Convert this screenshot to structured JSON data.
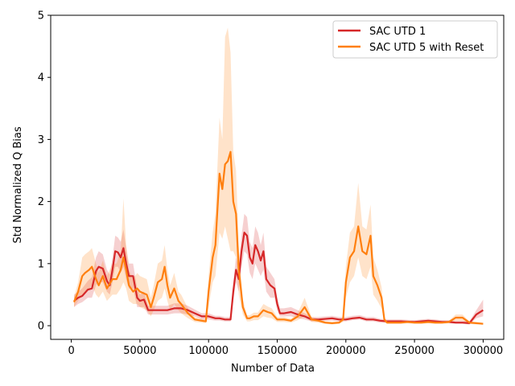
{
  "chart_data": {
    "type": "line",
    "title": "",
    "xlabel": "Number of Data",
    "ylabel": "Std Normalized Q Bias",
    "xlim": [
      -15000,
      315000
    ],
    "ylim": [
      -0.22,
      5.0
    ],
    "xticks": [
      0,
      50000,
      100000,
      150000,
      200000,
      250000,
      300000
    ],
    "xtick_labels": [
      "0",
      "50000",
      "100000",
      "150000",
      "200000",
      "250000",
      "300000"
    ],
    "yticks": [
      0,
      1,
      2,
      3,
      4,
      5
    ],
    "ytick_labels": [
      "0",
      "1",
      "2",
      "3",
      "4",
      "5"
    ],
    "grid": false,
    "legend_position": "top-right",
    "series": [
      {
        "name": "SAC UTD 1",
        "color": "#d62728",
        "x": [
          2000,
          5000,
          8000,
          12000,
          15000,
          18000,
          20000,
          23000,
          26000,
          28000,
          30000,
          32000,
          34000,
          36000,
          38000,
          40000,
          42000,
          45000,
          48000,
          50000,
          53000,
          56000,
          60000,
          65000,
          70000,
          75000,
          80000,
          85000,
          90000,
          95000,
          100000,
          105000,
          108000,
          112000,
          116000,
          118000,
          120000,
          122000,
          124000,
          126000,
          128000,
          130000,
          132000,
          134000,
          136000,
          138000,
          140000,
          142000,
          145000,
          148000,
          150000,
          152000,
          155000,
          160000,
          165000,
          170000,
          175000,
          180000,
          190000,
          195000,
          200000,
          205000,
          210000,
          215000,
          220000,
          225000,
          230000,
          240000,
          250000,
          255000,
          260000,
          265000,
          270000,
          275000,
          280000,
          285000,
          290000,
          295000,
          300000
        ],
        "values": [
          0.4,
          0.45,
          0.48,
          0.58,
          0.6,
          0.88,
          0.95,
          0.92,
          0.72,
          0.65,
          0.9,
          1.2,
          1.18,
          1.1,
          1.25,
          1.0,
          0.8,
          0.8,
          0.45,
          0.4,
          0.42,
          0.25,
          0.25,
          0.25,
          0.25,
          0.28,
          0.28,
          0.25,
          0.2,
          0.15,
          0.15,
          0.12,
          0.12,
          0.1,
          0.1,
          0.55,
          0.9,
          0.75,
          1.2,
          1.5,
          1.45,
          1.1,
          1.0,
          1.3,
          1.2,
          1.05,
          1.2,
          0.75,
          0.65,
          0.6,
          0.35,
          0.2,
          0.2,
          0.22,
          0.18,
          0.15,
          0.1,
          0.1,
          0.12,
          0.1,
          0.1,
          0.12,
          0.13,
          0.1,
          0.1,
          0.08,
          0.07,
          0.07,
          0.06,
          0.07,
          0.08,
          0.07,
          0.06,
          0.06,
          0.05,
          0.05,
          0.04,
          0.18,
          0.25
        ],
        "lower": [
          0.3,
          0.35,
          0.38,
          0.45,
          0.45,
          0.65,
          0.7,
          0.7,
          0.55,
          0.5,
          0.7,
          0.95,
          0.95,
          0.85,
          0.95,
          0.75,
          0.6,
          0.6,
          0.3,
          0.3,
          0.3,
          0.18,
          0.18,
          0.18,
          0.18,
          0.2,
          0.2,
          0.18,
          0.15,
          0.1,
          0.1,
          0.08,
          0.08,
          0.07,
          0.07,
          0.4,
          0.7,
          0.55,
          0.95,
          1.2,
          1.15,
          0.85,
          0.75,
          1.0,
          0.9,
          0.8,
          0.9,
          0.55,
          0.45,
          0.45,
          0.25,
          0.15,
          0.15,
          0.15,
          0.12,
          0.1,
          0.07,
          0.07,
          0.08,
          0.07,
          0.07,
          0.09,
          0.1,
          0.07,
          0.07,
          0.05,
          0.05,
          0.05,
          0.04,
          0.05,
          0.05,
          0.05,
          0.04,
          0.04,
          0.03,
          0.03,
          0.02,
          0.12,
          0.15
        ],
        "upper": [
          0.5,
          0.55,
          0.6,
          0.72,
          0.78,
          1.1,
          1.2,
          1.15,
          0.9,
          0.82,
          1.1,
          1.45,
          1.42,
          1.35,
          1.55,
          1.25,
          1.0,
          1.0,
          0.6,
          0.5,
          0.55,
          0.32,
          0.32,
          0.32,
          0.32,
          0.36,
          0.36,
          0.32,
          0.26,
          0.2,
          0.2,
          0.16,
          0.16,
          0.14,
          0.14,
          0.7,
          1.1,
          0.95,
          1.45,
          1.8,
          1.75,
          1.35,
          1.25,
          1.6,
          1.5,
          1.3,
          1.5,
          0.95,
          0.85,
          0.75,
          0.45,
          0.28,
          0.28,
          0.3,
          0.25,
          0.2,
          0.14,
          0.14,
          0.16,
          0.14,
          0.14,
          0.16,
          0.17,
          0.14,
          0.14,
          0.11,
          0.1,
          0.1,
          0.09,
          0.1,
          0.11,
          0.1,
          0.09,
          0.09,
          0.08,
          0.08,
          0.07,
          0.25,
          0.42
        ]
      },
      {
        "name": "SAC UTD 5 with Reset",
        "color": "#ff7f0e",
        "x": [
          2000,
          5000,
          8000,
          10000,
          13000,
          15000,
          18000,
          20000,
          23000,
          26000,
          30000,
          33000,
          36000,
          38000,
          40000,
          42000,
          45000,
          48000,
          50000,
          55000,
          58000,
          60000,
          63000,
          66000,
          68000,
          70000,
          72000,
          75000,
          78000,
          80000,
          85000,
          90000,
          95000,
          98000,
          100000,
          103000,
          105000,
          108000,
          110000,
          112000,
          114000,
          116000,
          118000,
          120000,
          122000,
          125000,
          128000,
          130000,
          133000,
          136000,
          140000,
          143000,
          146000,
          150000,
          155000,
          160000,
          165000,
          170000,
          175000,
          180000,
          185000,
          190000,
          195000,
          198000,
          200000,
          203000,
          206000,
          209000,
          212000,
          215000,
          218000,
          220000,
          223000,
          226000,
          228000,
          230000,
          235000,
          240000,
          245000,
          250000,
          255000,
          260000,
          265000,
          270000,
          275000,
          280000,
          285000,
          290000,
          295000,
          300000
        ],
        "values": [
          0.38,
          0.55,
          0.8,
          0.85,
          0.9,
          0.95,
          0.75,
          0.65,
          0.8,
          0.6,
          0.75,
          0.75,
          0.9,
          1.1,
          0.9,
          0.65,
          0.55,
          0.6,
          0.55,
          0.5,
          0.3,
          0.45,
          0.7,
          0.75,
          0.95,
          0.65,
          0.45,
          0.6,
          0.4,
          0.35,
          0.2,
          0.1,
          0.08,
          0.07,
          0.55,
          1.1,
          1.3,
          2.45,
          2.2,
          2.6,
          2.65,
          2.8,
          2.0,
          1.8,
          0.9,
          0.3,
          0.12,
          0.12,
          0.15,
          0.15,
          0.25,
          0.22,
          0.2,
          0.1,
          0.1,
          0.08,
          0.15,
          0.3,
          0.1,
          0.08,
          0.05,
          0.04,
          0.05,
          0.1,
          0.7,
          1.1,
          1.2,
          1.6,
          1.2,
          1.15,
          1.45,
          0.8,
          0.65,
          0.45,
          0.1,
          0.05,
          0.05,
          0.05,
          0.06,
          0.05,
          0.05,
          0.06,
          0.05,
          0.05,
          0.06,
          0.13,
          0.13,
          0.05,
          0.04,
          0.03
        ],
        "lower": [
          0.3,
          0.4,
          0.5,
          0.55,
          0.6,
          0.65,
          0.5,
          0.45,
          0.55,
          0.4,
          0.5,
          0.5,
          0.6,
          0.7,
          0.6,
          0.4,
          0.35,
          0.35,
          0.3,
          0.25,
          0.15,
          0.25,
          0.4,
          0.45,
          0.6,
          0.4,
          0.25,
          0.35,
          0.25,
          0.2,
          0.12,
          0.06,
          0.05,
          0.04,
          0.3,
          0.7,
          0.8,
          1.5,
          1.4,
          1.6,
          1.4,
          1.2,
          1.2,
          1.1,
          0.5,
          0.18,
          0.07,
          0.07,
          0.09,
          0.09,
          0.15,
          0.13,
          0.12,
          0.06,
          0.06,
          0.05,
          0.09,
          0.15,
          0.06,
          0.05,
          0.03,
          0.02,
          0.03,
          0.06,
          0.45,
          0.7,
          0.8,
          1.1,
          0.8,
          0.75,
          0.95,
          0.5,
          0.4,
          0.28,
          0.06,
          0.03,
          0.03,
          0.03,
          0.04,
          0.03,
          0.03,
          0.04,
          0.03,
          0.03,
          0.04,
          0.08,
          0.08,
          0.03,
          0.02,
          0.02
        ],
        "upper": [
          0.46,
          0.7,
          1.1,
          1.15,
          1.2,
          1.25,
          1.0,
          0.85,
          1.05,
          0.8,
          1.0,
          1.0,
          1.2,
          2.05,
          1.3,
          0.9,
          0.75,
          0.85,
          0.8,
          0.75,
          0.45,
          0.65,
          1.0,
          1.05,
          1.3,
          0.9,
          0.65,
          0.85,
          0.55,
          0.5,
          0.28,
          0.14,
          0.11,
          0.1,
          0.8,
          1.5,
          1.8,
          3.35,
          3.0,
          4.65,
          4.8,
          4.4,
          2.8,
          2.5,
          1.3,
          0.42,
          0.17,
          0.17,
          0.21,
          0.21,
          0.35,
          0.31,
          0.28,
          0.14,
          0.14,
          0.11,
          0.21,
          0.45,
          0.14,
          0.11,
          0.07,
          0.06,
          0.07,
          0.14,
          0.95,
          1.5,
          1.6,
          2.3,
          1.6,
          1.55,
          1.95,
          1.1,
          0.9,
          0.62,
          0.14,
          0.07,
          0.07,
          0.07,
          0.08,
          0.07,
          0.07,
          0.08,
          0.07,
          0.07,
          0.08,
          0.18,
          0.18,
          0.07,
          0.06,
          0.05
        ]
      }
    ]
  }
}
